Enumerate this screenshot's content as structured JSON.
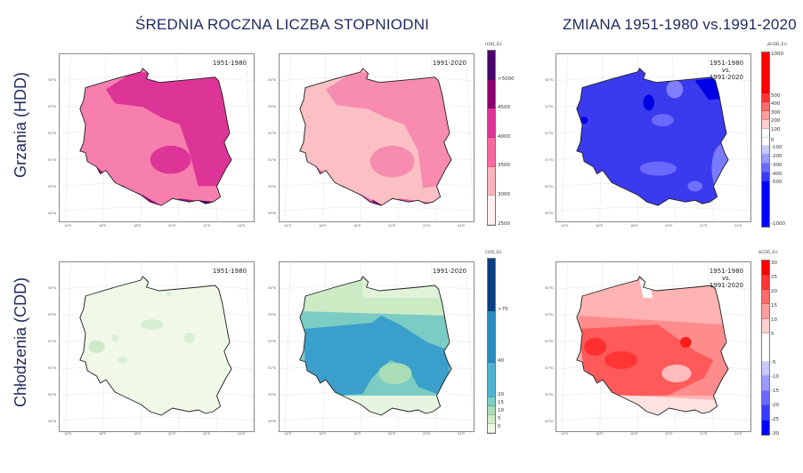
{
  "headings": {
    "left": "ŚREDNIA ROCZNA LICZBA STOPNIODNI",
    "right": "ZMIANA 1951-1980 vs.1991-2020"
  },
  "row_labels": {
    "hdd": "Grzania (HDD)",
    "cdd": "Chłodzenia (CDD)"
  },
  "axes": {
    "lat_ticks": [
      "54°N",
      "53°N",
      "52°N",
      "51°N",
      "50°N",
      "49°N"
    ],
    "lon_ticks": [
      "14°E",
      "16°E",
      "18°E",
      "20°E",
      "22°E",
      "24°E"
    ]
  },
  "colorbars": {
    "hdd": {
      "title": "HDD_EU",
      "ticks": [
        ">5000",
        "4500",
        "4000",
        "3500",
        "3000",
        "2500"
      ],
      "colors": [
        "#49006a",
        "#8c0172",
        "#dd3497",
        "#f768a1",
        "#fbb4b9",
        "#fff0ee"
      ]
    },
    "dhdd": {
      "title": "ΔHDD_EU",
      "ticks": [
        "1000",
        "500",
        "400",
        "300",
        "200",
        "100",
        "0",
        "-100",
        "-200",
        "-300",
        "-400",
        "-500",
        "-1000"
      ],
      "colors": [
        "#ff0000",
        "#ff3535",
        "#ff6a6a",
        "#ff9e9e",
        "#ffd0d0",
        "#ffffff",
        "#ffffff",
        "#c8c8ff",
        "#9a9aff",
        "#6a6aff",
        "#3a3aff",
        "#0000ff"
      ]
    },
    "cdd": {
      "title": "CDD_EU",
      "ticks": [
        ">70",
        "40",
        "20",
        "15",
        "10",
        "5",
        "0"
      ],
      "colors": [
        "#084081",
        "#2b8cbe",
        "#4eb3d3",
        "#7bccc4",
        "#a8ddb5",
        "#ccebc5",
        "#f0f9e8"
      ]
    },
    "dcdd": {
      "title": "ΔCDD_EU",
      "ticks": [
        "30",
        "25",
        "20",
        "15",
        "10",
        "5",
        "-5",
        "-10",
        "-15",
        "-20",
        "-25",
        "-30"
      ],
      "colors": [
        "#ff0000",
        "#ff3535",
        "#ff6a6a",
        "#ff9e9e",
        "#ffd0d0",
        "#ffffff",
        "#c8c8ff",
        "#9a9aff",
        "#6a6aff",
        "#3a3aff",
        "#0000ff"
      ]
    }
  },
  "panels": {
    "hdd_1951": {
      "period": "1951-1980"
    },
    "hdd_1991": {
      "period": "1991-2020"
    },
    "hdd_change": {
      "period": "1951-1980\nvs.\n1991-2020"
    },
    "cdd_1951": {
      "period": "1951-1980"
    },
    "cdd_1991": {
      "period": "1991-2020"
    },
    "cdd_change": {
      "period": "1951-1980\nvs.\n1991-2020"
    }
  },
  "chart_data": [
    {
      "type": "heatmap",
      "title": "Grzania (HDD) 1951-1980",
      "variable": "HDD_EU",
      "levels": [
        2500,
        3000,
        3500,
        4000,
        4500,
        5000
      ],
      "summary": "West/central Poland mostly 3500-4000; north-east, north and south-central uplands 4000-4500; mountains (Sudetes, Carpathians) >4500 to >5000"
    },
    {
      "type": "heatmap",
      "title": "Grzania (HDD) 1991-2020",
      "variable": "HDD_EU",
      "levels": [
        2500,
        3000,
        3500,
        4000,
        4500,
        5000
      ],
      "summary": "West/central mostly 3000-3500; north and east 3500-4000; mountains 4000->5000"
    },
    {
      "type": "heatmap",
      "title": "Zmiana HDD 1951-1980 vs. 1991-2020",
      "variable": "ΔHDD_EU",
      "levels": [
        -1000,
        -500,
        -400,
        -300,
        -200,
        -100,
        0,
        100,
        200,
        300,
        400,
        500,
        1000
      ],
      "summary": "Decrease over entire country, mostly -400 to -500 and below; patches of -200 to -300"
    },
    {
      "type": "heatmap",
      "title": "Chłodzenia (CDD) 1951-1980",
      "variable": "CDD_EU",
      "levels": [
        0,
        5,
        10,
        15,
        20,
        40,
        70
      ],
      "summary": "Almost entire country 0-5; few small patches 5-10"
    },
    {
      "type": "heatmap",
      "title": "Chłodzenia (CDD) 1991-2020",
      "variable": "CDD_EU",
      "levels": [
        0,
        5,
        10,
        15,
        20,
        40,
        70
      ],
      "summary": "Central and western belt 20-40; north and south 5-20; mountains 0-5"
    },
    {
      "type": "heatmap",
      "title": "Zmiana CDD 1951-1980 vs. 1991-2020",
      "variable": "ΔCDD_EU",
      "levels": [
        -30,
        -25,
        -20,
        -15,
        -10,
        -5,
        5,
        10,
        15,
        20,
        25,
        30
      ],
      "summary": "Increase across country; strongest +20 to +25 in west and centre, +5 to +15 in north and east, little change in mountains"
    }
  ]
}
